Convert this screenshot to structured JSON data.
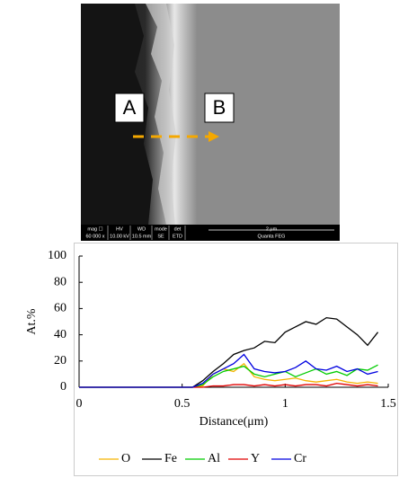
{
  "sem_image": {
    "labels": [
      "A",
      "B"
    ],
    "info_bar": {
      "headers": [
        "mag ☐",
        "HV",
        "WD",
        "mode",
        "det"
      ],
      "values": [
        "60 000 x",
        "10.00 kV",
        "10.5 mm",
        "SE",
        "ETD"
      ],
      "scale": "2 μm",
      "instrument": "Quanta FEG"
    }
  },
  "chart_data": {
    "type": "line",
    "xlabel": "Distance(μm)",
    "ylabel": "At.%",
    "x": [
      0,
      0.05,
      0.1,
      0.15,
      0.2,
      0.25,
      0.3,
      0.35,
      0.4,
      0.45,
      0.5,
      0.55,
      0.6,
      0.65,
      0.7,
      0.75,
      0.8,
      0.85,
      0.9,
      0.95,
      1,
      1.05,
      1.1,
      1.15,
      1.2,
      1.25,
      1.3,
      1.35,
      1.4,
      1.45
    ],
    "series": [
      {
        "name": "O",
        "color": "#f5b400",
        "values": [
          0,
          0,
          0,
          0,
          0,
          0,
          0,
          0,
          0,
          0,
          0,
          0,
          1,
          10,
          14,
          12,
          18,
          8,
          6,
          5,
          6,
          7,
          5,
          4,
          5,
          6,
          4,
          3,
          4,
          3
        ]
      },
      {
        "name": "Fe",
        "color": "#000000",
        "values": [
          0,
          0,
          0,
          0,
          0,
          0,
          0,
          0,
          0,
          0,
          0,
          0,
          5,
          12,
          18,
          25,
          28,
          30,
          35,
          34,
          42,
          46,
          50,
          48,
          53,
          52,
          46,
          40,
          32,
          42
        ]
      },
      {
        "name": "Al",
        "color": "#00cc00",
        "values": [
          0,
          0,
          0,
          0,
          0,
          0,
          0,
          0,
          0,
          0,
          0,
          0,
          2,
          8,
          12,
          14,
          16,
          10,
          8,
          10,
          12,
          8,
          11,
          14,
          10,
          12,
          9,
          14,
          13,
          17
        ]
      },
      {
        "name": "Y",
        "color": "#e00000",
        "values": [
          0,
          0,
          0,
          0,
          0,
          0,
          0,
          0,
          0,
          0,
          0,
          0,
          0,
          1,
          1,
          2,
          2,
          1,
          2,
          1,
          2,
          1,
          2,
          2,
          1,
          3,
          2,
          1,
          2,
          1
        ]
      },
      {
        "name": "Cr",
        "color": "#0000e0",
        "values": [
          0,
          0,
          0,
          0,
          0,
          0,
          0,
          0,
          0,
          0,
          0,
          0,
          3,
          10,
          14,
          18,
          25,
          14,
          12,
          11,
          12,
          15,
          20,
          14,
          13,
          16,
          12,
          14,
          10,
          12
        ]
      }
    ],
    "xlim": [
      0,
      1.5
    ],
    "xticks": [
      0,
      0.5,
      1,
      1.5
    ],
    "ylim": [
      0,
      100
    ],
    "yticks": [
      0,
      20,
      40,
      60,
      80,
      100
    ],
    "grid": false,
    "legend": "bottom"
  }
}
